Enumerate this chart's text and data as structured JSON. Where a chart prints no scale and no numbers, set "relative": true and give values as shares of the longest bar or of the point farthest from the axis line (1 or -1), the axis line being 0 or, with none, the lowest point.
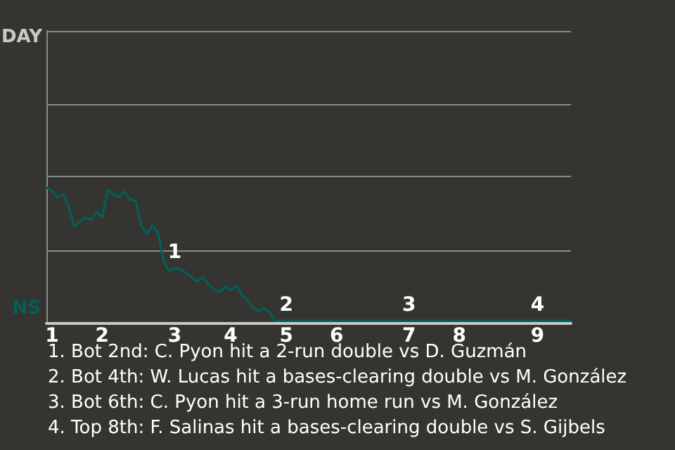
{
  "chart_data": {
    "type": "line",
    "relative": true,
    "categories": [
      null,
      "1",
      null,
      null,
      null,
      null,
      null,
      null,
      null,
      null,
      "2",
      null,
      null,
      null,
      null,
      null,
      null,
      null,
      null,
      null,
      null,
      null,
      null,
      "3",
      null,
      null,
      null,
      null,
      null,
      null,
      null,
      null,
      null,
      "4",
      null,
      null,
      null,
      null,
      null,
      null,
      null,
      null,
      null,
      "5",
      null,
      null,
      null,
      null,
      null,
      null,
      null,
      null,
      "6",
      null,
      null,
      null,
      null,
      null,
      null,
      null,
      null,
      null,
      null,
      null,
      null,
      "7",
      null,
      null,
      null,
      null,
      null,
      null,
      null,
      null,
      "8",
      null,
      null,
      null,
      null,
      null,
      null,
      null,
      null,
      null,
      null,
      null,
      null,
      null,
      "9",
      null,
      null,
      null,
      null,
      null,
      null
    ],
    "xlabel": "NS",
    "marker": "none",
    "line_style": "solid",
    "ref_lines": [
      {
        "axis": "y",
        "value": 0.54,
        "color": "#8a8a8a"
      },
      {
        "axis": "y",
        "value": 1.08,
        "color": "#8a8a8a"
      },
      {
        "axis": "y",
        "value": 1.61,
        "color": "#8a8a8a"
      },
      {
        "axis": "y",
        "value": 2.15,
        "color": "#8a8a8a"
      }
    ],
    "series": [
      {
        "color": "#00605a",
        "values": [
          1,
          0.97,
          0.93,
          0.95,
          0.86,
          0.71,
          0.75,
          0.78,
          0.76,
          0.82,
          0.78,
          0.98,
          0.95,
          0.93,
          0.97,
          0.91,
          0.9,
          0.72,
          0.66,
          0.72,
          0.67,
          0.46,
          0.38,
          0.41,
          0.4,
          0.37,
          0.34,
          0.31,
          0.34,
          0.29,
          0.25,
          0.23,
          0.27,
          0.24,
          0.28,
          0.21,
          0.17,
          0.12,
          0.09,
          0.11,
          0.08,
          0.02,
          0.02,
          0.02,
          0.02,
          0.02,
          0.02,
          0.02,
          0.02,
          0.02,
          0.02,
          0.02,
          0.02,
          0.02,
          0.02,
          0.02,
          0.02,
          0.02,
          0.02,
          0.02,
          0.02,
          0.02,
          0.02,
          0.02,
          0.02,
          0.02,
          0.02,
          0.02,
          0.02,
          0.02,
          0.02,
          0.02,
          0.02,
          0.02,
          0.02,
          0.02,
          0.02,
          0.02,
          0.02,
          0.02,
          0.02,
          0.02,
          0.02,
          0.02,
          0.02,
          0.02,
          0.02,
          0.02,
          0.02,
          0.02,
          0.02,
          0.02,
          0.02,
          0.02,
          0.02
        ]
      }
    ],
    "annotations": [
      {
        "text": "1",
        "x": "3",
        "y": 0.41
      },
      {
        "text": "2",
        "x": "5",
        "y": 0.02
      },
      {
        "text": "3",
        "x": "7",
        "y": 0.02
      },
      {
        "text": "4",
        "x": "9",
        "y": 0.02
      },
      "DAY",
      "1. Bot 2nd: C. Pyon hit a 2-run double vs D. Guzmán",
      "2. Bot 4th: W. Lucas hit a bases-clearing double vs M. González",
      "3. Bot 6th: C. Pyon hit a 3-run home run vs M. González",
      "4. Top 8th: F. Salinas hit a bases-clearing double vs S. Gijbels"
    ]
  }
}
